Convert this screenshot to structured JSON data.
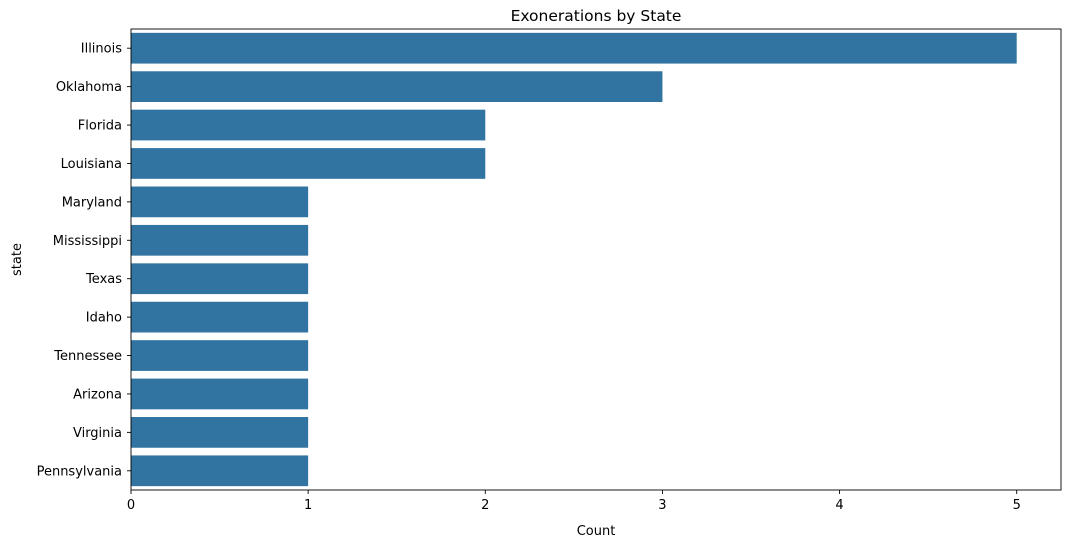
{
  "chart_data": {
    "type": "bar",
    "orientation": "horizontal",
    "title": "Exonerations by State",
    "xlabel": "Count",
    "ylabel": "state",
    "categories": [
      "Illinois",
      "Oklahoma",
      "Florida",
      "Louisiana",
      "Maryland",
      "Mississippi",
      "Texas",
      "Idaho",
      "Tennessee",
      "Arizona",
      "Virginia",
      "Pennsylvania"
    ],
    "values": [
      5,
      3,
      2,
      2,
      1,
      1,
      1,
      1,
      1,
      1,
      1,
      1
    ],
    "xlim": [
      0,
      5.25
    ],
    "xticks": [
      0,
      1,
      2,
      3,
      4,
      5
    ],
    "grid": false,
    "bar_color": "#3274a1"
  }
}
